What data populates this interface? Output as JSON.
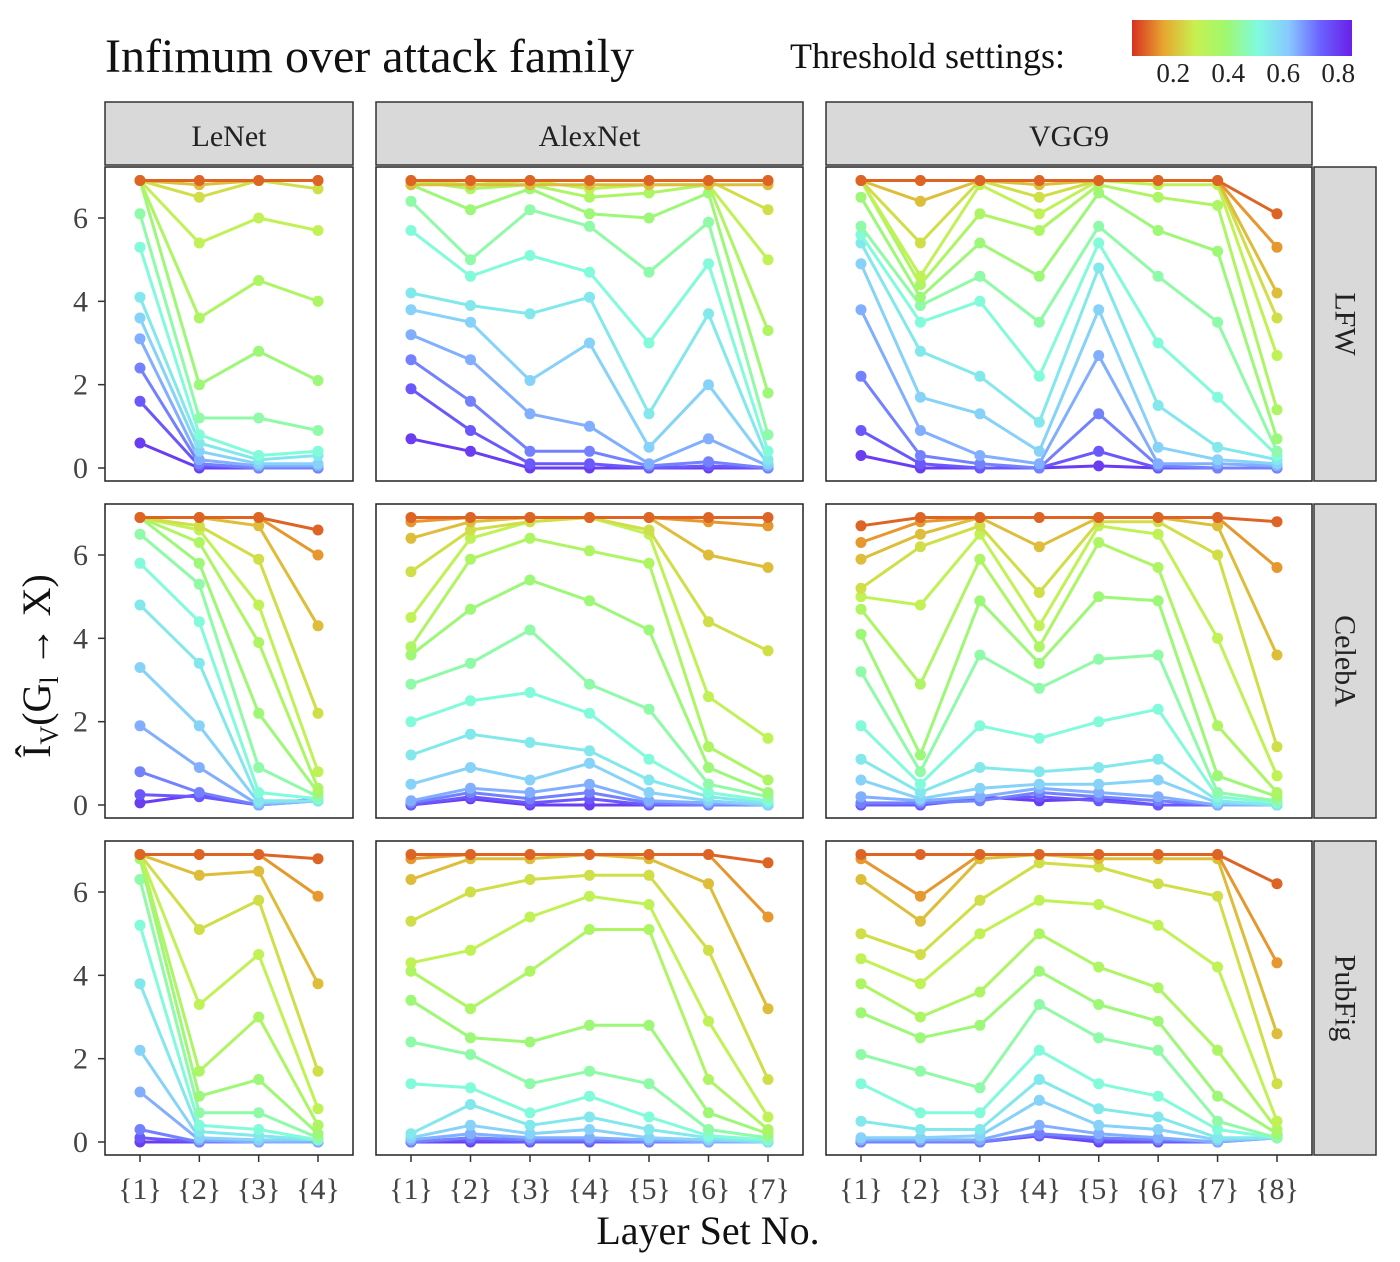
{
  "chart_data": {
    "type": "line",
    "title": "Infimum over attack family",
    "legend": {
      "title": "Threshold settings:",
      "ticks": [
        "0.2",
        "0.4",
        "0.6",
        "0.8"
      ],
      "tick_values": [
        0.2,
        0.4,
        0.6,
        0.8
      ],
      "range": [
        0.05,
        0.85
      ],
      "colors": [
        "#d7301f",
        "#e8a630",
        "#c8f050",
        "#9ff870",
        "#7ffbe0",
        "#88c8ff",
        "#6a60ff",
        "#6a20e8"
      ],
      "placement": "top-right"
    },
    "xlabel": "Layer Set No.",
    "ylabel": "Î_V(G_l → X)",
    "ylabel_parts": {
      "main": "Î",
      "sub1": "V",
      "open": "(G",
      "sub2": "l",
      "rest": " → X)"
    },
    "ylim": [
      0,
      7
    ],
    "yticks": [
      0,
      2,
      4,
      6
    ],
    "ytick_labels": [
      "0",
      "2",
      "4",
      "6"
    ],
    "columns": [
      {
        "name": "LeNet",
        "xticks": [
          "{1}",
          "{2}",
          "{3}",
          "{4}"
        ]
      },
      {
        "name": "AlexNet",
        "xticks": [
          "{1}",
          "{2}",
          "{3}",
          "{4}",
          "{5}",
          "{6}",
          "{7}"
        ]
      },
      {
        "name": "VGG9",
        "xticks": [
          "{1}",
          "{2}",
          "{3}",
          "{4}",
          "{5}",
          "{6}",
          "{7}",
          "{8}"
        ]
      }
    ],
    "rows": [
      "LFW",
      "CelebA",
      "PubFig"
    ],
    "thresholds": [
      0.1,
      0.15,
      0.2,
      0.25,
      0.3,
      0.35,
      0.4,
      0.45,
      0.5,
      0.55,
      0.6,
      0.65,
      0.7,
      0.75,
      0.8
    ],
    "panels": [
      [
        [
          [
            6.9,
            6.9,
            6.9,
            6.9
          ],
          [
            6.9,
            6.9,
            6.9,
            6.9
          ],
          [
            6.9,
            6.8,
            6.9,
            6.9
          ],
          [
            6.9,
            6.5,
            6.9,
            6.7
          ],
          [
            6.9,
            5.4,
            6.0,
            5.7
          ],
          [
            6.9,
            3.6,
            4.5,
            4.0
          ],
          [
            6.9,
            2.0,
            2.8,
            2.1
          ],
          [
            6.1,
            1.2,
            1.2,
            0.9
          ],
          [
            5.3,
            0.8,
            0.3,
            0.4
          ],
          [
            4.1,
            0.6,
            0.2,
            0.3
          ],
          [
            3.6,
            0.4,
            0.1,
            0.1
          ],
          [
            3.1,
            0.2,
            0.05,
            0.05
          ],
          [
            2.4,
            0.1,
            0.0,
            0.0
          ],
          [
            1.6,
            0.05,
            0.0,
            0.0
          ],
          [
            0.6,
            0.0,
            0.0,
            0.0
          ]
        ],
        [
          [
            6.9,
            6.9,
            6.9,
            6.6
          ],
          [
            6.9,
            6.9,
            6.9,
            6.0
          ],
          [
            6.9,
            6.9,
            6.7,
            4.3
          ],
          [
            6.9,
            6.7,
            5.9,
            2.2
          ],
          [
            6.9,
            6.6,
            4.8,
            0.8
          ],
          [
            6.9,
            6.3,
            3.9,
            0.4
          ],
          [
            6.9,
            5.8,
            2.2,
            0.3
          ],
          [
            6.5,
            5.3,
            0.9,
            0.2
          ],
          [
            5.8,
            4.4,
            0.3,
            0.15
          ],
          [
            4.8,
            3.4,
            0.1,
            0.1
          ],
          [
            3.3,
            1.9,
            0.05,
            0.1
          ],
          [
            1.9,
            0.9,
            0.0,
            0.1
          ],
          [
            0.8,
            0.3,
            0.0,
            0.1
          ],
          [
            0.25,
            0.2,
            0.0,
            0.15
          ],
          [
            0.05,
            0.25,
            0.0,
            0.15
          ]
        ],
        [
          [
            6.9,
            6.9,
            6.9,
            6.8
          ],
          [
            6.9,
            6.9,
            6.9,
            5.9
          ],
          [
            6.9,
            6.4,
            6.5,
            3.8
          ],
          [
            6.9,
            5.1,
            5.8,
            1.7
          ],
          [
            6.9,
            3.3,
            4.5,
            0.8
          ],
          [
            6.9,
            1.7,
            3.0,
            0.4
          ],
          [
            6.8,
            1.1,
            1.5,
            0.2
          ],
          [
            6.3,
            0.7,
            0.7,
            0.1
          ],
          [
            5.2,
            0.4,
            0.3,
            0.05
          ],
          [
            3.8,
            0.25,
            0.15,
            0.05
          ],
          [
            2.2,
            0.1,
            0.05,
            0.05
          ],
          [
            1.2,
            0.05,
            0.0,
            0.0
          ],
          [
            0.3,
            0.0,
            0.0,
            0.0
          ],
          [
            0.1,
            0.0,
            0.0,
            0.0
          ],
          [
            0.0,
            0.0,
            0.0,
            0.0
          ]
        ]
      ],
      [
        [
          [
            6.9,
            6.9,
            6.9,
            6.9,
            6.9,
            6.9,
            6.9
          ],
          [
            6.9,
            6.9,
            6.9,
            6.9,
            6.9,
            6.9,
            6.9
          ],
          [
            6.8,
            6.8,
            6.8,
            6.8,
            6.8,
            6.8,
            6.8
          ],
          [
            6.9,
            6.9,
            6.9,
            6.9,
            6.9,
            6.9,
            6.2
          ],
          [
            6.9,
            6.8,
            6.9,
            6.7,
            6.8,
            6.8,
            5.0
          ],
          [
            6.9,
            6.7,
            6.8,
            6.5,
            6.6,
            6.8,
            3.3
          ],
          [
            6.8,
            6.2,
            6.7,
            6.1,
            6.0,
            6.6,
            1.8
          ],
          [
            6.4,
            5.0,
            6.2,
            5.8,
            4.7,
            5.9,
            0.8
          ],
          [
            5.7,
            4.6,
            5.1,
            4.7,
            3.0,
            4.9,
            0.4
          ],
          [
            4.2,
            3.9,
            3.7,
            4.1,
            1.3,
            3.7,
            0.2
          ],
          [
            3.8,
            3.5,
            2.1,
            3.0,
            0.5,
            2.0,
            0.1
          ],
          [
            3.2,
            2.6,
            1.3,
            1.0,
            0.1,
            0.7,
            0.05
          ],
          [
            2.6,
            1.6,
            0.4,
            0.4,
            0.05,
            0.15,
            0.0
          ],
          [
            1.9,
            0.9,
            0.1,
            0.1,
            0.0,
            0.05,
            0.0
          ],
          [
            0.7,
            0.4,
            0.0,
            0.0,
            0.0,
            0.0,
            0.0
          ]
        ],
        [
          [
            6.9,
            6.9,
            6.9,
            6.9,
            6.9,
            6.9,
            6.9
          ],
          [
            6.8,
            6.9,
            6.9,
            6.9,
            6.9,
            6.8,
            6.7
          ],
          [
            6.4,
            6.8,
            6.9,
            6.9,
            6.9,
            6.0,
            5.7
          ],
          [
            5.6,
            6.6,
            6.8,
            6.9,
            6.6,
            4.4,
            3.7
          ],
          [
            4.5,
            6.4,
            6.8,
            6.9,
            6.5,
            2.6,
            1.6
          ],
          [
            3.8,
            5.9,
            6.4,
            6.1,
            5.8,
            1.4,
            0.6
          ],
          [
            3.6,
            4.7,
            5.4,
            4.9,
            4.2,
            0.9,
            0.3
          ],
          [
            2.9,
            3.4,
            4.2,
            2.9,
            2.3,
            0.5,
            0.2
          ],
          [
            2.0,
            2.5,
            2.7,
            2.2,
            1.1,
            0.3,
            0.1
          ],
          [
            1.2,
            1.7,
            1.5,
            1.3,
            0.6,
            0.2,
            0.05
          ],
          [
            0.5,
            0.9,
            0.6,
            1.0,
            0.3,
            0.1,
            0.0
          ],
          [
            0.1,
            0.4,
            0.3,
            0.5,
            0.1,
            0.05,
            0.0
          ],
          [
            0.05,
            0.3,
            0.15,
            0.3,
            0.05,
            0.0,
            0.0
          ],
          [
            0.0,
            0.2,
            0.05,
            0.15,
            0.0,
            0.0,
            0.0
          ],
          [
            0.0,
            0.15,
            0.0,
            0.0,
            0.0,
            0.0,
            0.0
          ]
        ],
        [
          [
            6.9,
            6.9,
            6.9,
            6.9,
            6.9,
            6.9,
            6.7
          ],
          [
            6.8,
            6.9,
            6.9,
            6.9,
            6.9,
            6.9,
            5.4
          ],
          [
            6.3,
            6.8,
            6.8,
            6.9,
            6.8,
            6.2,
            3.2
          ],
          [
            5.3,
            6.0,
            6.3,
            6.4,
            6.4,
            4.6,
            1.5
          ],
          [
            4.3,
            4.6,
            5.4,
            5.9,
            5.7,
            2.9,
            0.6
          ],
          [
            4.1,
            3.2,
            4.1,
            5.1,
            5.1,
            1.5,
            0.3
          ],
          [
            3.4,
            2.5,
            2.4,
            2.8,
            2.8,
            0.7,
            0.2
          ],
          [
            2.4,
            2.1,
            1.4,
            1.7,
            1.4,
            0.3,
            0.1
          ],
          [
            1.4,
            1.3,
            0.7,
            1.1,
            0.6,
            0.15,
            0.05
          ],
          [
            0.2,
            0.9,
            0.4,
            0.6,
            0.3,
            0.1,
            0.0
          ],
          [
            0.1,
            0.4,
            0.2,
            0.3,
            0.1,
            0.05,
            0.0
          ],
          [
            0.05,
            0.2,
            0.1,
            0.1,
            0.05,
            0.0,
            0.0
          ],
          [
            0.0,
            0.1,
            0.05,
            0.05,
            0.0,
            0.0,
            0.0
          ],
          [
            0.0,
            0.05,
            0.0,
            0.0,
            0.0,
            0.0,
            0.0
          ],
          [
            0.0,
            0.0,
            0.0,
            0.0,
            0.0,
            0.0,
            0.0
          ]
        ]
      ],
      [
        [
          [
            6.9,
            6.9,
            6.9,
            6.9,
            6.9,
            6.9,
            6.9,
            6.1
          ],
          [
            6.9,
            6.9,
            6.9,
            6.9,
            6.9,
            6.9,
            6.9,
            5.3
          ],
          [
            6.9,
            6.4,
            6.9,
            6.8,
            6.9,
            6.9,
            6.9,
            4.2
          ],
          [
            6.9,
            5.4,
            6.9,
            6.5,
            6.9,
            6.9,
            6.9,
            3.6
          ],
          [
            6.9,
            4.6,
            6.8,
            6.1,
            6.9,
            6.8,
            6.8,
            2.7
          ],
          [
            6.9,
            4.4,
            6.1,
            5.7,
            6.8,
            6.5,
            6.3,
            1.4
          ],
          [
            6.5,
            4.1,
            5.4,
            4.6,
            6.6,
            5.7,
            5.2,
            0.7
          ],
          [
            5.8,
            3.9,
            4.6,
            3.5,
            5.8,
            4.6,
            3.5,
            0.4
          ],
          [
            5.6,
            3.5,
            4.0,
            2.2,
            5.4,
            3.0,
            1.7,
            0.3
          ],
          [
            5.4,
            2.8,
            2.2,
            1.1,
            4.8,
            1.5,
            0.5,
            0.2
          ],
          [
            4.9,
            1.7,
            1.3,
            0.4,
            3.8,
            0.5,
            0.2,
            0.1
          ],
          [
            3.8,
            0.9,
            0.3,
            0.1,
            2.7,
            0.1,
            0.1,
            0.05
          ],
          [
            2.2,
            0.3,
            0.1,
            0.0,
            1.3,
            0.05,
            0.0,
            0.0
          ],
          [
            0.9,
            0.1,
            0.0,
            0.0,
            0.4,
            0.0,
            0.0,
            0.0
          ],
          [
            0.3,
            0.0,
            0.0,
            0.0,
            0.05,
            0.0,
            0.0,
            0.0
          ]
        ],
        [
          [
            6.7,
            6.9,
            6.9,
            6.9,
            6.9,
            6.9,
            6.9,
            6.8
          ],
          [
            6.3,
            6.8,
            6.9,
            6.9,
            6.9,
            6.9,
            6.9,
            5.7
          ],
          [
            5.9,
            6.5,
            6.9,
            6.2,
            6.9,
            6.9,
            6.7,
            3.6
          ],
          [
            5.2,
            6.2,
            6.7,
            5.1,
            6.8,
            6.8,
            6.0,
            1.4
          ],
          [
            5.0,
            4.8,
            6.5,
            4.3,
            6.7,
            6.5,
            4.0,
            0.7
          ],
          [
            4.7,
            2.9,
            5.9,
            3.8,
            6.3,
            5.7,
            1.9,
            0.3
          ],
          [
            4.1,
            1.2,
            4.9,
            3.4,
            5.0,
            4.9,
            0.7,
            0.2
          ],
          [
            3.2,
            0.8,
            3.6,
            2.8,
            3.5,
            3.6,
            0.3,
            0.1
          ],
          [
            1.9,
            0.5,
            1.9,
            1.6,
            2.0,
            2.3,
            0.2,
            0.05
          ],
          [
            1.1,
            0.3,
            0.9,
            0.8,
            0.9,
            1.1,
            0.1,
            0.0
          ],
          [
            0.6,
            0.15,
            0.4,
            0.5,
            0.5,
            0.6,
            0.05,
            0.0
          ],
          [
            0.2,
            0.1,
            0.2,
            0.4,
            0.3,
            0.2,
            0.0,
            0.0
          ],
          [
            0.05,
            0.05,
            0.1,
            0.3,
            0.2,
            0.1,
            0.0,
            0.0
          ],
          [
            0.0,
            0.0,
            0.15,
            0.2,
            0.1,
            0.0,
            0.0,
            0.0
          ],
          [
            0.0,
            0.0,
            0.2,
            0.1,
            0.15,
            0.0,
            0.0,
            0.0
          ]
        ],
        [
          [
            6.9,
            6.9,
            6.9,
            6.9,
            6.9,
            6.9,
            6.9,
            6.2
          ],
          [
            6.8,
            5.9,
            6.9,
            6.9,
            6.9,
            6.9,
            6.9,
            4.3
          ],
          [
            6.3,
            5.3,
            6.8,
            6.9,
            6.8,
            6.8,
            6.8,
            2.6
          ],
          [
            5.0,
            4.5,
            5.8,
            6.7,
            6.6,
            6.2,
            5.9,
            1.4
          ],
          [
            4.4,
            3.8,
            5.0,
            5.8,
            5.7,
            5.2,
            4.2,
            0.5
          ],
          [
            3.8,
            3.0,
            3.6,
            5.0,
            4.2,
            3.7,
            2.2,
            0.3
          ],
          [
            3.1,
            2.5,
            2.8,
            4.1,
            3.3,
            2.9,
            1.1,
            0.2
          ],
          [
            2.1,
            1.7,
            1.3,
            3.3,
            2.5,
            2.2,
            0.5,
            0.1
          ],
          [
            1.4,
            0.7,
            0.7,
            2.2,
            1.4,
            1.1,
            0.3,
            0.1
          ],
          [
            0.5,
            0.3,
            0.3,
            1.5,
            0.8,
            0.6,
            0.1,
            0.1
          ],
          [
            0.1,
            0.1,
            0.15,
            1.0,
            0.4,
            0.3,
            0.05,
            0.1
          ],
          [
            0.05,
            0.05,
            0.05,
            0.4,
            0.2,
            0.1,
            0.0,
            0.1
          ],
          [
            0.0,
            0.0,
            0.0,
            0.2,
            0.1,
            0.05,
            0.0,
            0.1
          ],
          [
            0.0,
            0.0,
            0.0,
            0.15,
            0.05,
            0.0,
            0.0,
            0.15
          ],
          [
            0.0,
            0.0,
            0.0,
            0.15,
            0.0,
            0.0,
            0.0,
            0.15
          ]
        ]
      ]
    ]
  }
}
